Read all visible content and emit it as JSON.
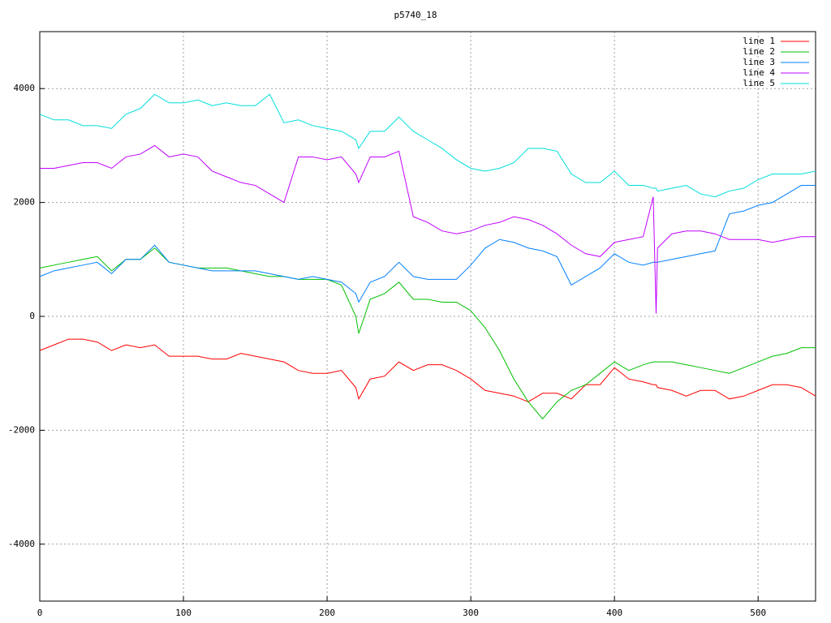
{
  "chart_data": {
    "type": "line",
    "title": "p5740_18",
    "x": [
      0,
      10,
      20,
      30,
      40,
      50,
      60,
      70,
      80,
      90,
      100,
      110,
      120,
      130,
      140,
      150,
      160,
      170,
      180,
      190,
      200,
      210,
      220,
      222,
      230,
      240,
      250,
      260,
      270,
      280,
      290,
      300,
      310,
      320,
      330,
      340,
      350,
      360,
      370,
      380,
      390,
      400,
      410,
      420,
      427,
      429,
      430,
      440,
      450,
      460,
      470,
      480,
      490,
      500,
      510,
      520,
      530,
      540
    ],
    "series": [
      {
        "name": "line 1",
        "color": "#ff0000",
        "values": [
          -600,
          -500,
          -400,
          -400,
          -450,
          -600,
          -500,
          -550,
          -500,
          -700,
          -700,
          -700,
          -750,
          -750,
          -650,
          -700,
          -750,
          -800,
          -950,
          -1000,
          -1000,
          -950,
          -1250,
          -1450,
          -1100,
          -1050,
          -800,
          -950,
          -850,
          -850,
          -950,
          -1100,
          -1300,
          -1350,
          -1400,
          -1500,
          -1350,
          -1350,
          -1450,
          -1200,
          -1200,
          -900,
          -1100,
          -1150,
          -1200,
          -1200,
          -1250,
          -1300,
          -1400,
          -1300,
          -1300,
          -1450,
          -1400,
          -1300,
          -1200,
          -1200,
          -1250,
          -1400
        ]
      },
      {
        "name": "line 2",
        "color": "#00c000",
        "values": [
          850,
          900,
          950,
          1000,
          1050,
          800,
          1000,
          1000,
          1200,
          950,
          900,
          850,
          850,
          850,
          800,
          750,
          700,
          700,
          650,
          650,
          650,
          550,
          0,
          -300,
          300,
          400,
          600,
          300,
          300,
          250,
          250,
          100,
          -200,
          -600,
          -1100,
          -1500,
          -1800,
          -1500,
          -1300,
          -1200,
          -1000,
          -800,
          -950,
          -850,
          -800,
          -800,
          -800,
          -800,
          -850,
          -900,
          -950,
          -1000,
          -900,
          -800,
          -700,
          -650,
          -550,
          -550
        ]
      },
      {
        "name": "line 3",
        "color": "#0080ff",
        "values": [
          700,
          800,
          850,
          900,
          950,
          750,
          1000,
          1000,
          1250,
          950,
          900,
          850,
          800,
          800,
          800,
          800,
          750,
          700,
          650,
          700,
          650,
          600,
          400,
          250,
          600,
          700,
          950,
          700,
          650,
          650,
          650,
          900,
          1200,
          1350,
          1300,
          1200,
          1150,
          1050,
          550,
          700,
          850,
          1100,
          950,
          900,
          950,
          950,
          950,
          1000,
          1050,
          1100,
          1150,
          1800,
          1850,
          1950,
          2000,
          2150,
          2300,
          2300
        ]
      },
      {
        "name": "line 4",
        "color": "#c000ff",
        "values": [
          2600,
          2600,
          2650,
          2700,
          2700,
          2600,
          2800,
          2850,
          3000,
          2800,
          2850,
          2800,
          2550,
          2450,
          2350,
          2300,
          2150,
          2000,
          2800,
          2800,
          2750,
          2800,
          2500,
          2350,
          2800,
          2800,
          2900,
          1750,
          1650,
          1500,
          1450,
          1500,
          1600,
          1650,
          1750,
          1700,
          1600,
          1450,
          1250,
          1100,
          1050,
          1300,
          1350,
          1400,
          2100,
          50,
          1200,
          1450,
          1500,
          1500,
          1450,
          1350,
          1350,
          1350,
          1300,
          1350,
          1400,
          1400
        ]
      },
      {
        "name": "line 5",
        "color": "#00dddd",
        "values": [
          3550,
          3450,
          3450,
          3350,
          3350,
          3300,
          3550,
          3650,
          3900,
          3750,
          3750,
          3800,
          3700,
          3750,
          3700,
          3700,
          3900,
          3400,
          3450,
          3350,
          3300,
          3250,
          3100,
          2950,
          3250,
          3250,
          3500,
          3250,
          3100,
          2950,
          2750,
          2600,
          2550,
          2600,
          2700,
          2950,
          2950,
          2900,
          2500,
          2350,
          2350,
          2550,
          2300,
          2300,
          2250,
          2250,
          2200,
          2250,
          2300,
          2150,
          2100,
          2200,
          2250,
          2400,
          2500,
          2500,
          2500,
          2550
        ]
      }
    ],
    "xlim": [
      0,
      540
    ],
    "xticks": [
      0,
      100,
      200,
      300,
      400,
      500
    ],
    "ylim": [
      -5000,
      5000
    ],
    "yticks": [
      -4000,
      -2000,
      0,
      2000,
      4000
    ],
    "grid": true,
    "legend_position": "top-right"
  }
}
